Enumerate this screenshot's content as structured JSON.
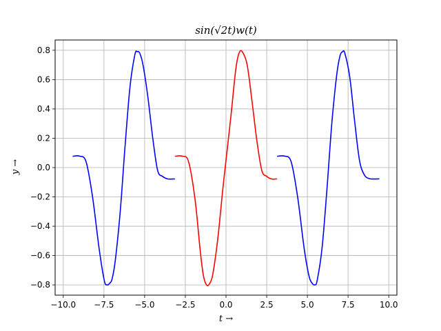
{
  "chart_data": {
    "type": "line",
    "title": "sin(√2t)w(t)",
    "xlabel": "t →",
    "ylabel": "y →",
    "xlim": [
      -10.5,
      10.5
    ],
    "ylim": [
      -0.87,
      0.87
    ],
    "grid": true,
    "legend": "none",
    "xticks": [
      -10.0,
      -7.5,
      -5.0,
      -2.5,
      0.0,
      2.5,
      5.0,
      7.5,
      10.0
    ],
    "xtick_labels": [
      "−10.0",
      "−7.5",
      "−5.0",
      "−2.5",
      "0.0",
      "2.5",
      "5.0",
      "7.5",
      "10.0"
    ],
    "yticks": [
      -0.8,
      -0.6,
      -0.4,
      -0.2,
      0.0,
      0.2,
      0.4,
      0.6,
      0.8
    ],
    "ytick_labels": [
      "−0.8",
      "−0.6",
      "−0.4",
      "−0.2",
      "0.0",
      "0.2",
      "0.4",
      "0.6",
      "0.8"
    ],
    "series": [
      {
        "color": "#0000ff",
        "x": [
          -9.42,
          -9.0,
          -8.6,
          -8.2,
          -7.8,
          -7.48,
          -7.3,
          -7.16,
          -7.0,
          -6.8,
          -6.5,
          -6.2,
          -5.9,
          -5.6,
          -5.45,
          -5.3,
          -5.1,
          -4.8,
          -4.5,
          -4.2,
          -3.9,
          -3.6,
          -3.3,
          -3.14
        ],
        "y": [
          0.077,
          0.078,
          0.04,
          -0.2,
          -0.55,
          -0.77,
          -0.8,
          -0.79,
          -0.76,
          -0.63,
          -0.3,
          0.15,
          0.55,
          0.77,
          0.79,
          0.78,
          0.7,
          0.48,
          0.2,
          -0.02,
          -0.06,
          -0.077,
          -0.078,
          -0.077
        ]
      },
      {
        "color": "#ff0000",
        "x": [
          -3.14,
          -2.7,
          -2.3,
          -1.9,
          -1.6,
          -1.4,
          -1.2,
          -1.0,
          -0.8,
          -0.5,
          -0.2,
          0.0,
          0.3,
          0.6,
          0.8,
          1.0,
          1.3,
          1.6,
          1.9,
          2.2,
          2.5,
          2.8,
          3.14
        ],
        "y": [
          0.077,
          0.078,
          0.04,
          -0.22,
          -0.55,
          -0.73,
          -0.8,
          -0.79,
          -0.72,
          -0.48,
          -0.15,
          0.05,
          0.35,
          0.67,
          0.78,
          0.79,
          0.7,
          0.45,
          0.18,
          -0.02,
          -0.06,
          -0.078,
          -0.077
        ]
      },
      {
        "color": "#0000ff",
        "x": [
          3.14,
          3.6,
          4.0,
          4.4,
          4.8,
          5.1,
          5.3,
          5.45,
          5.6,
          5.9,
          6.2,
          6.5,
          6.8,
          7.0,
          7.16,
          7.3,
          7.6,
          7.9,
          8.2,
          8.5,
          8.8,
          9.1,
          9.42
        ],
        "y": [
          0.077,
          0.078,
          0.04,
          -0.2,
          -0.55,
          -0.74,
          -0.79,
          -0.8,
          -0.77,
          -0.55,
          -0.15,
          0.3,
          0.63,
          0.76,
          0.79,
          0.78,
          0.62,
          0.32,
          0.05,
          -0.05,
          -0.075,
          -0.078,
          -0.077
        ]
      }
    ]
  }
}
